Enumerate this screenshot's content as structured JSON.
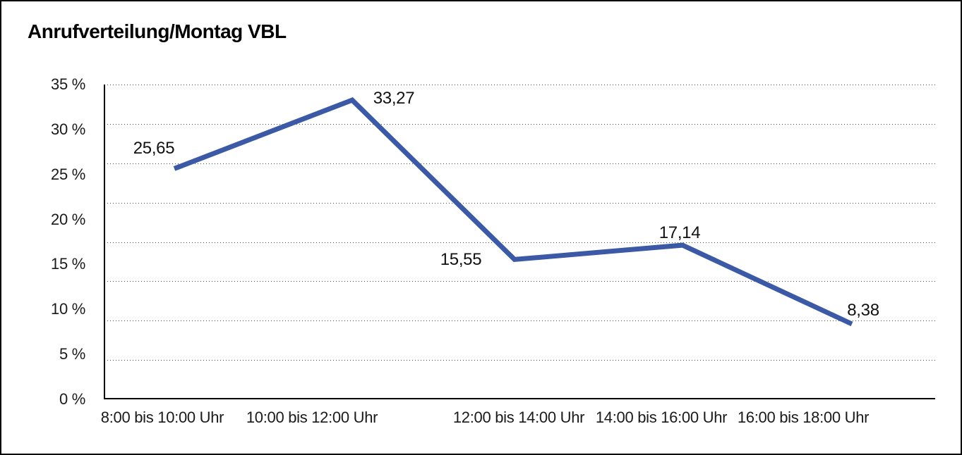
{
  "chart_data": {
    "type": "line",
    "title": "Anrufverteilung/Montag VBL",
    "categories": [
      "8:00 bis 10:00 Uhr",
      "10:00 bis 12:00 Uhr",
      "12:00 bis 14:00 Uhr",
      "14:00 bis 16:00 Uhr",
      "16:00 bis 18:00 Uhr"
    ],
    "values": [
      25.65,
      33.27,
      15.55,
      17.14,
      8.38
    ],
    "point_labels": [
      "25,65",
      "33,27",
      "15,55",
      "17,14",
      "8,38"
    ],
    "y_tick_labels": [
      "35 %",
      "30 %",
      "25 %",
      "20 %",
      "15 %",
      "10 %",
      "5 %",
      "0 %"
    ],
    "xlabel": "",
    "ylabel": "",
    "ylim": [
      0,
      35
    ],
    "grid": "horizontal dotted lines (8 equal intervals), solid baseline",
    "legend": "none",
    "line_color": "#3B59A5",
    "axis_color": "#000000"
  }
}
